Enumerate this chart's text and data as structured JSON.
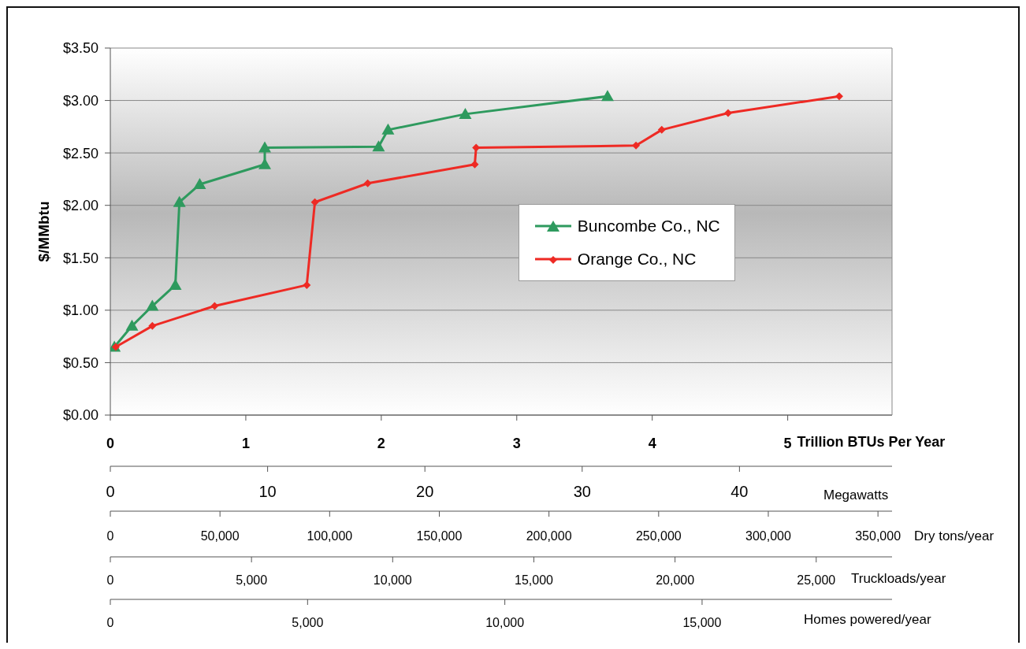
{
  "chart_data": {
    "type": "line",
    "xlabel": "Trillion BTUs Per Year",
    "ylabel": "$/MMbtu",
    "xlim": [
      0,
      5.77
    ],
    "xticks": [
      0,
      1,
      2,
      3,
      4,
      5
    ],
    "ylim": [
      0,
      3.5
    ],
    "yticks": [
      {
        "value": 0,
        "label": "$0.00"
      },
      {
        "value": 0.5,
        "label": "$0.50"
      },
      {
        "value": 1,
        "label": "$1.00"
      },
      {
        "value": 1.5,
        "label": "$1.50"
      },
      {
        "value": 2,
        "label": "$2.00"
      },
      {
        "value": 2.5,
        "label": "$2.50"
      },
      {
        "value": 3,
        "label": "$3.00"
      },
      {
        "value": 3.5,
        "label": "$3.50"
      }
    ],
    "x2label": "Megawatts",
    "x2lim": [
      0,
      49.7
    ],
    "x2ticks": [
      0,
      10,
      20,
      30,
      40
    ],
    "annotations": [
      "Dry tons/year",
      "0",
      "50,000",
      "100,000",
      "150,000",
      "200,000",
      "250,000",
      "300,000",
      "350,000",
      "Truckloads/year",
      "0",
      "5,000",
      "10,000",
      "15,000",
      "20,000",
      "25,000",
      "Homes powered/year",
      "0",
      "5,000",
      "10,000",
      "15,000"
    ],
    "grid": "y",
    "legend": "right",
    "line_style": "solid",
    "series": [
      {
        "name": "Buncombe Co., NC",
        "color": "#2e9a5e",
        "marker": "triangle",
        "x": [
          0.03,
          0.16,
          0.31,
          0.48,
          0.51,
          0.66,
          1.14,
          1.14,
          1.98,
          2.05,
          2.62,
          3.67
        ],
        "values": [
          0.65,
          0.85,
          1.04,
          1.24,
          2.03,
          2.2,
          2.39,
          2.55,
          2.56,
          2.72,
          2.87,
          3.04
        ]
      },
      {
        "name": "Orange Co., NC",
        "color": "#ee2a24",
        "marker": "diamond",
        "x": [
          0.04,
          0.31,
          0.77,
          1.45,
          1.51,
          1.9,
          2.69,
          2.7,
          3.88,
          4.07,
          4.56,
          5.38
        ],
        "values": [
          0.65,
          0.85,
          1.04,
          1.24,
          2.03,
          2.21,
          2.39,
          2.55,
          2.57,
          2.72,
          2.88,
          3.04
        ]
      }
    ]
  }
}
